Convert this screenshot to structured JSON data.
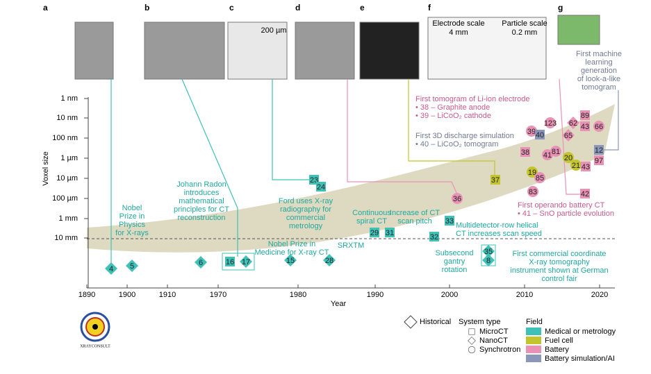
{
  "panels": [
    "a",
    "b",
    "c",
    "d",
    "e",
    "f",
    "g"
  ],
  "image_labels": [
    "200 µm",
    "Electrode scale",
    "4 mm",
    "Particle scale",
    "0.2 mm"
  ],
  "y_axis": {
    "label": "Voxel size",
    "ticks": [
      "1 nm",
      "10 nm",
      "100 nm",
      "1 µm",
      "10 µm",
      "100 µm",
      "1 mm",
      "10 mm"
    ]
  },
  "x_axis": {
    "label": "Year",
    "ticks": [
      "1890",
      "1900",
      "1910",
      "1970",
      "1980",
      "1990",
      "2000",
      "2010",
      "2020"
    ]
  },
  "fields": [
    {
      "name": "Medical or metrology",
      "color": "#3fc1b8"
    },
    {
      "name": "Fuel cell",
      "color": "#c4c42c"
    },
    {
      "name": "Battery",
      "color": "#ea92b6"
    },
    {
      "name": "Battery simulation/AI",
      "color": "#8a96ba"
    }
  ],
  "markers": [
    {
      "label": "4",
      "shape": "diamond",
      "field": 0
    },
    {
      "label": "5",
      "shape": "diamond",
      "field": 0
    },
    {
      "label": "6",
      "shape": "diamond",
      "field": 0
    },
    {
      "label": "16",
      "shape": "square",
      "field": 0
    },
    {
      "label": "17",
      "shape": "diamond",
      "field": 0
    },
    {
      "label": "15",
      "shape": "diamond",
      "field": 0
    },
    {
      "label": "28",
      "shape": "diamond",
      "field": 0
    },
    {
      "label": "23",
      "shape": "square",
      "field": 0
    },
    {
      "label": "24",
      "shape": "square",
      "field": 0
    },
    {
      "label": "29",
      "shape": "square",
      "field": 0
    },
    {
      "label": "31",
      "shape": "square",
      "field": 0
    },
    {
      "label": "32",
      "shape": "square",
      "field": 0
    },
    {
      "label": "33",
      "shape": "square",
      "field": 0
    },
    {
      "label": "35",
      "shape": "diamond",
      "field": 0
    },
    {
      "label": "8",
      "shape": "diamond",
      "field": 0
    },
    {
      "label": "36",
      "shape": "circle",
      "field": 2
    },
    {
      "label": "37",
      "shape": "square",
      "field": 1
    },
    {
      "label": "39",
      "shape": "circle",
      "field": 2
    },
    {
      "label": "40",
      "shape": "square",
      "field": 3
    },
    {
      "label": "123",
      "shape": "circle",
      "field": 2
    },
    {
      "label": "62",
      "shape": "diamond",
      "field": 2
    },
    {
      "label": "89",
      "shape": "square",
      "field": 2
    },
    {
      "label": "43",
      "shape": "square",
      "field": 2
    },
    {
      "label": "66",
      "shape": "circle",
      "field": 2
    },
    {
      "label": "65",
      "shape": "diamond",
      "field": 2
    },
    {
      "label": "38",
      "shape": "square",
      "field": 2
    },
    {
      "label": "41",
      "shape": "circle",
      "field": 2
    },
    {
      "label": "81",
      "shape": "circle",
      "field": 2
    },
    {
      "label": "20",
      "shape": "circle",
      "field": 1
    },
    {
      "label": "21",
      "shape": "circle",
      "field": 1
    },
    {
      "label": "43",
      "shape": "square",
      "field": 2
    },
    {
      "label": "12",
      "shape": "square",
      "field": 3
    },
    {
      "label": "97",
      "shape": "square",
      "field": 2
    },
    {
      "label": "19",
      "shape": "circle",
      "field": 1
    },
    {
      "label": "85",
      "shape": "circle",
      "field": 2
    },
    {
      "label": "83",
      "shape": "circle",
      "field": 2
    },
    {
      "label": "42",
      "shape": "square",
      "field": 2
    }
  ],
  "annotations": [
    {
      "field": 0,
      "lines": [
        "Nobel",
        "Prize in",
        "Physics",
        "for X-rays"
      ]
    },
    {
      "field": 0,
      "lines": [
        "Johann Radon",
        "introduces",
        "mathematical",
        "principles for CT",
        "reconstruction"
      ]
    },
    {
      "field": 0,
      "lines": [
        "Ford uses X-ray",
        "radiography for",
        "commercial",
        "metrology"
      ]
    },
    {
      "field": 0,
      "lines": [
        "Continuous",
        "spiral CT"
      ]
    },
    {
      "field": 0,
      "lines": [
        "Increase of CT",
        "scan pitch"
      ]
    },
    {
      "field": 0,
      "lines": [
        "Multidetector-row helical",
        "CT increases scan speed"
      ]
    },
    {
      "field": 0,
      "lines": [
        "Nobel Prize in",
        "Medicine for X-ray CT"
      ]
    },
    {
      "field": 0,
      "lines": [
        "SRXTM"
      ]
    },
    {
      "field": 0,
      "lines": [
        "Subsecond",
        "gantry",
        "rotation"
      ]
    },
    {
      "field": 0,
      "lines": [
        "First commercial coordinate",
        "X-ray tomography",
        "instrument shown at German",
        "control fair"
      ]
    },
    {
      "field": 2,
      "lines": [
        "First tomogram of Li-ion electrode",
        "• 38 – Graphite anode",
        "• 39 – LiCoO₂ cathode"
      ]
    },
    {
      "field": 3,
      "lines": [
        "First 3D discharge simulation",
        "• 40 –  LiCoO₂ tomogram"
      ]
    },
    {
      "field": 2,
      "lines": [
        "First operando battery CT",
        "• 41 – SnO particle evolution"
      ]
    },
    {
      "field": 3,
      "lines": [
        "First machine",
        "learning",
        "generation",
        "of look-a-like",
        "tomogram"
      ]
    }
  ],
  "legend": {
    "historical": "Historical",
    "system_title": "System type",
    "systems": [
      "MicroCT",
      "NanoCT",
      "Synchrotron"
    ],
    "field_title": "Field"
  },
  "logo": "XRAYCONSULT"
}
